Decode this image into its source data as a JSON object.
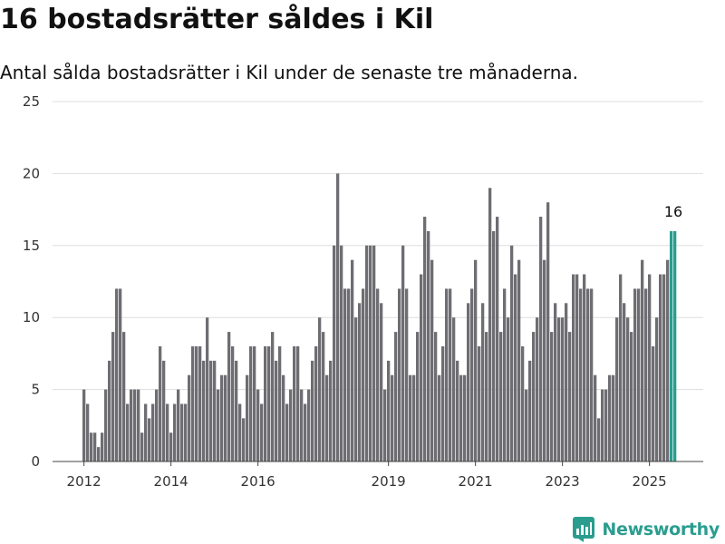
{
  "title": "16 bostadsrätter såldes i Kil",
  "subtitle": "Antal sålda bostadsrätter i Kil under de senaste tre månaderna.",
  "brand": "Newsworthy",
  "colors": {
    "bar": "#6e6d72",
    "highlight": "#2a9d8f",
    "grid": "#dddddd",
    "brand": "#2a9d8f"
  },
  "chart_data": {
    "type": "bar",
    "start": "2012-01",
    "interval": "month",
    "ylim": [
      0,
      25
    ],
    "yticks": [
      0,
      5,
      10,
      15,
      20,
      25
    ],
    "xticks": [
      "2012",
      "2014",
      "2016",
      "2019",
      "2021",
      "2023",
      "2025"
    ],
    "grid": true,
    "highlight_label": "16",
    "values": [
      5,
      4,
      2,
      2,
      1,
      2,
      5,
      7,
      9,
      12,
      12,
      9,
      4,
      5,
      5,
      5,
      2,
      4,
      3,
      4,
      5,
      8,
      7,
      4,
      2,
      4,
      5,
      4,
      4,
      6,
      8,
      8,
      8,
      7,
      10,
      7,
      7,
      5,
      6,
      6,
      9,
      8,
      7,
      4,
      3,
      6,
      8,
      8,
      5,
      4,
      8,
      8,
      9,
      7,
      8,
      6,
      4,
      5,
      8,
      8,
      5,
      4,
      5,
      7,
      8,
      10,
      9,
      6,
      7,
      15,
      20,
      15,
      12,
      12,
      14,
      10,
      11,
      12,
      15,
      15,
      15,
      12,
      11,
      5,
      7,
      6,
      9,
      12,
      15,
      12,
      6,
      6,
      9,
      13,
      17,
      16,
      14,
      9,
      6,
      8,
      12,
      12,
      10,
      7,
      6,
      6,
      11,
      12,
      14,
      8,
      11,
      9,
      19,
      16,
      17,
      9,
      12,
      10,
      15,
      13,
      14,
      8,
      5,
      7,
      9,
      10,
      17,
      14,
      18,
      9,
      11,
      10,
      10,
      11,
      9,
      13,
      13,
      12,
      13,
      12,
      12,
      6,
      3,
      5,
      5,
      6,
      6,
      10,
      13,
      11,
      10,
      9,
      12,
      12,
      14,
      12,
      13,
      8,
      10,
      13,
      13,
      14,
      16,
      16
    ]
  }
}
